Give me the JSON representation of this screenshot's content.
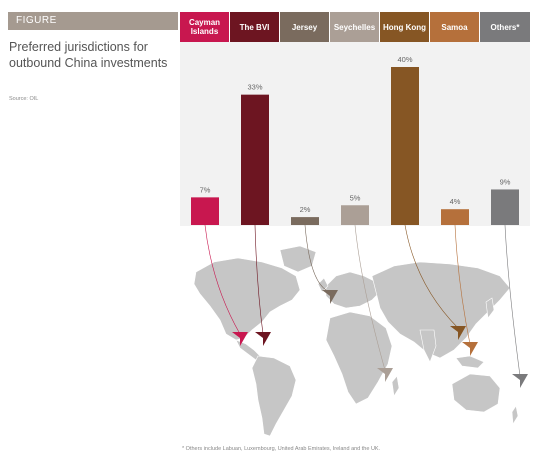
{
  "figure_label": "FIGURE",
  "title": "Preferred jurisdictions for outbound China investments",
  "source": "Source: OIL",
  "footnote": "* Others include Labuan, Luxembourg, United Arab Emirates, Ireland and the UK.",
  "chart_data": {
    "type": "bar",
    "categories": [
      "Cayman Islands",
      "The BVI",
      "Jersey",
      "Seychelles",
      "Hong Kong",
      "Samoa",
      "Others*"
    ],
    "values": [
      7,
      33,
      2,
      5,
      40,
      4,
      9
    ],
    "data_labels": [
      "7%",
      "33%",
      "2%",
      "5%",
      "40%",
      "4%",
      "9%"
    ],
    "colors": [
      "#c8174f",
      "#6d1521",
      "#7a6b5e",
      "#ab9f96",
      "#865624",
      "#b5703b",
      "#7a7a7c"
    ],
    "ylim": [
      0,
      45
    ],
    "grid": false,
    "legend": "top",
    "title": "",
    "xlabel": "",
    "ylabel": ""
  },
  "map": {
    "description_icon": "world-map",
    "land_color": "#c6c6c6",
    "background_color": "#ffffff"
  }
}
